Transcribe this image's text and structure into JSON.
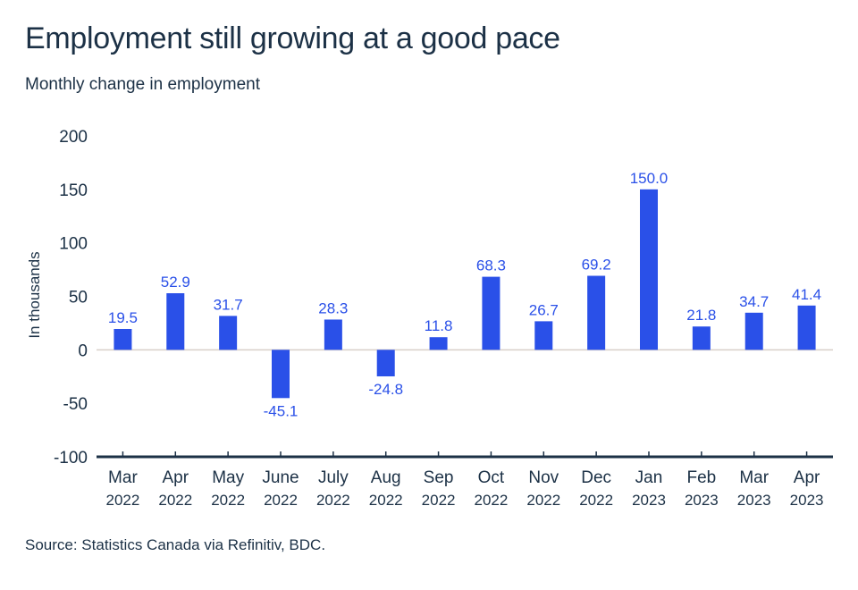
{
  "chart_data": {
    "type": "bar",
    "title": "Employment still growing at a good pace",
    "subtitle": "Monthly change in employment",
    "xlabel": "",
    "ylabel": "In thousands",
    "ylim": [
      -100,
      200
    ],
    "yticks": [
      200,
      150,
      100,
      50,
      0,
      -50,
      -100
    ],
    "grid": false,
    "categories": [
      {
        "month": "Mar",
        "year": "2022"
      },
      {
        "month": "Apr",
        "year": "2022"
      },
      {
        "month": "May",
        "year": "2022"
      },
      {
        "month": "June",
        "year": "2022"
      },
      {
        "month": "July",
        "year": "2022"
      },
      {
        "month": "Aug",
        "year": "2022"
      },
      {
        "month": "Sep",
        "year": "2022"
      },
      {
        "month": "Oct",
        "year": "2022"
      },
      {
        "month": "Nov",
        "year": "2022"
      },
      {
        "month": "Dec",
        "year": "2022"
      },
      {
        "month": "Jan",
        "year": "2023"
      },
      {
        "month": "Feb",
        "year": "2023"
      },
      {
        "month": "Mar",
        "year": "2023"
      },
      {
        "month": "Apr",
        "year": "2023"
      }
    ],
    "values": [
      19.5,
      52.9,
      31.7,
      -45.1,
      28.3,
      -24.8,
      11.8,
      68.3,
      26.7,
      69.2,
      150.0,
      21.8,
      34.7,
      41.4
    ],
    "value_labels": [
      "19.5",
      "52.9",
      "31.7",
      "-45.1",
      "28.3",
      "-24.8",
      "11.8",
      "68.3",
      "26.7",
      "69.2",
      "150.0",
      "21.8",
      "34.7",
      "41.4"
    ],
    "colors": {
      "bar": "#2a50e8",
      "label": "#2a50e8",
      "axis": "#1c3146",
      "zero_line": "#d9cfc9"
    },
    "source": "Source: Statistics Canada via Refinitiv, BDC."
  }
}
